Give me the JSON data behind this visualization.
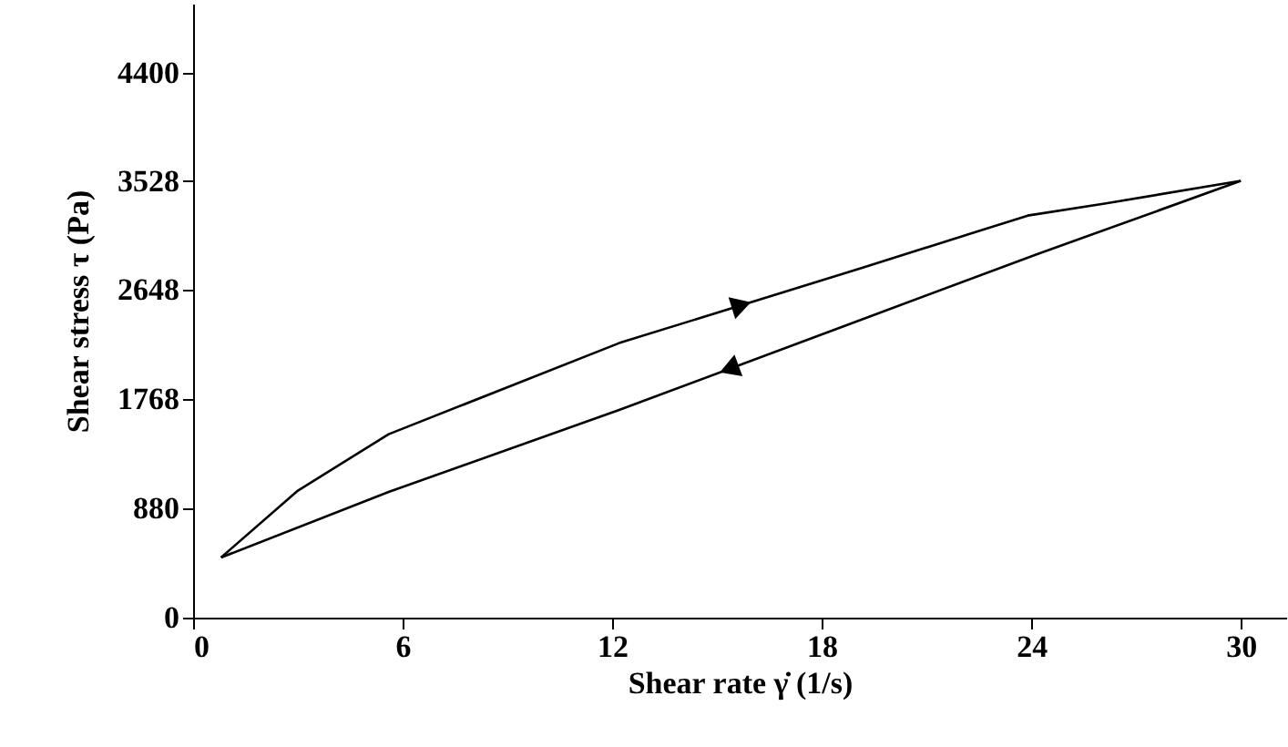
{
  "chart_data": {
    "type": "line",
    "xlabel": "Shear rate γ̇ (1/s)",
    "ylabel": "Shear stress τ (Pa)",
    "series": [
      {
        "color": "#000000",
        "x": [
          0.8,
          3.0,
          5.6,
          12.2,
          19.2,
          23.9,
          26.1,
          30.0
        ],
        "values": [
          486,
          1026,
          1482,
          2218,
          2830,
          3248,
          3345,
          3528
        ]
      },
      {
        "color": "#000000",
        "x": [
          30.0,
          24.1,
          18.5,
          12.2,
          5.6,
          0.8
        ],
        "values": [
          3528,
          2929,
          2340,
          1678,
          1015,
          486
        ]
      }
    ],
    "xlim": [
      0,
      31.3
    ],
    "xticks": [
      0,
      6,
      12,
      18,
      24,
      30
    ],
    "ylim": [
      0,
      4960
    ],
    "yticks": [
      0,
      880,
      1768,
      2648,
      3528,
      4400
    ],
    "grid": false,
    "marker": "none",
    "line_style": "solid"
  }
}
